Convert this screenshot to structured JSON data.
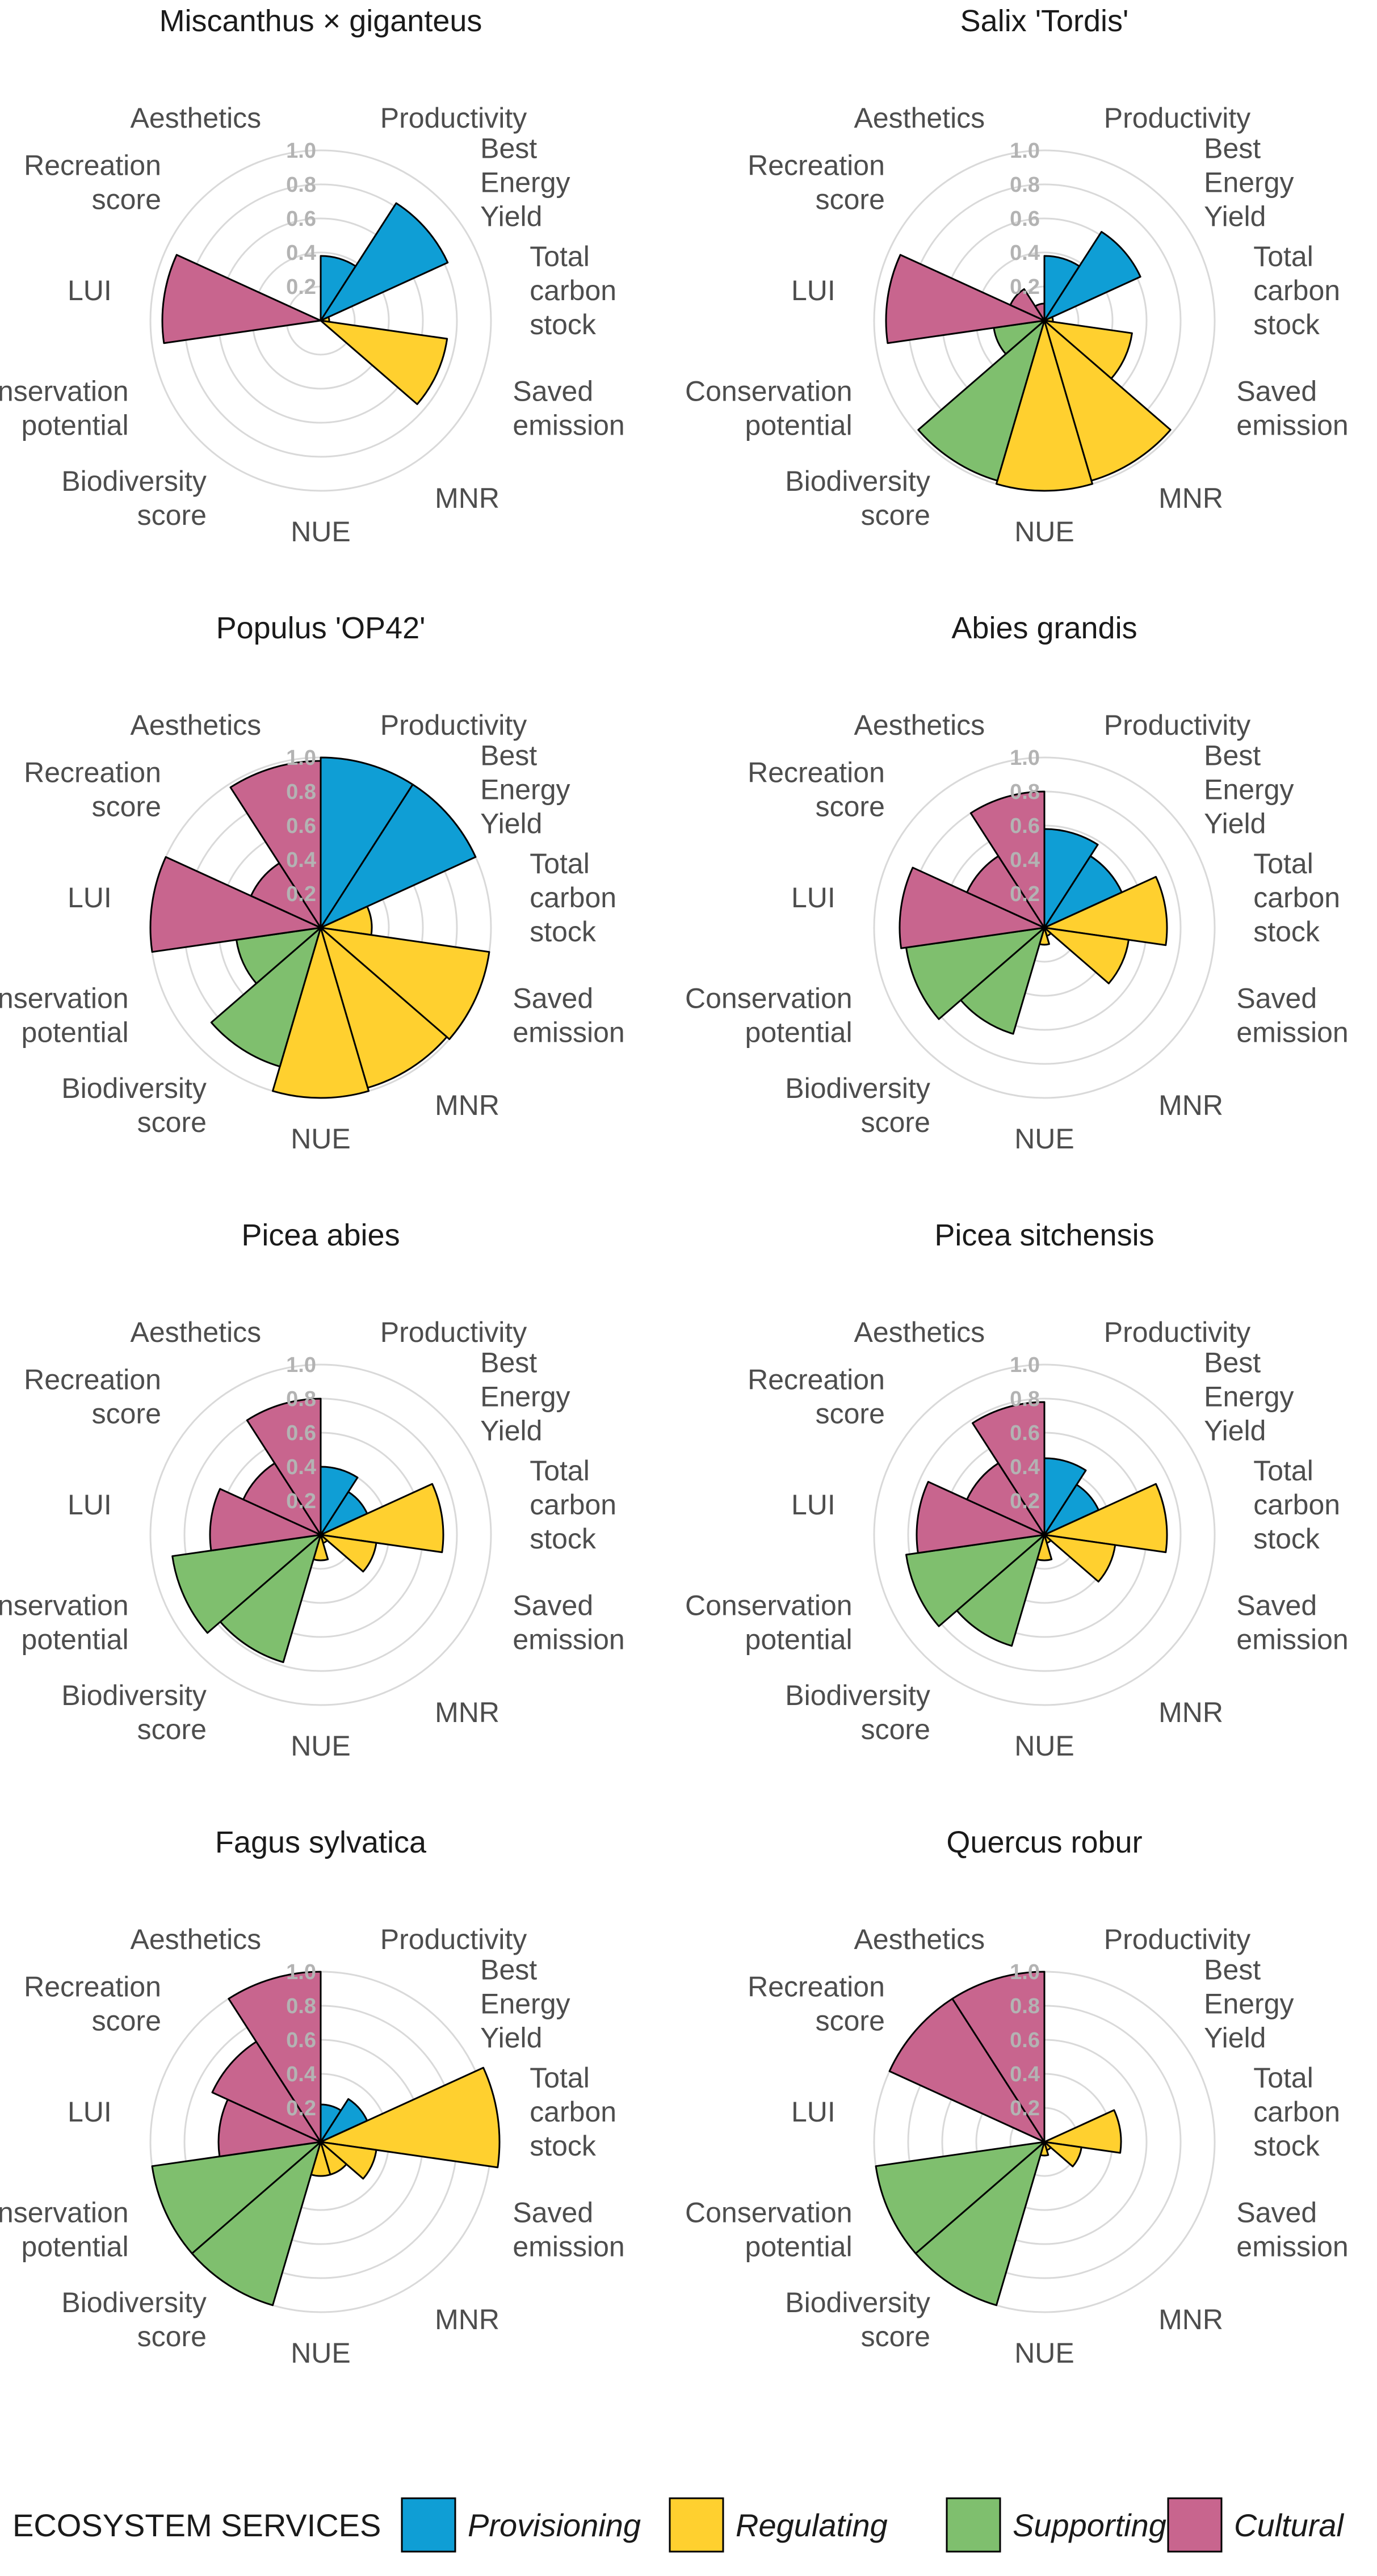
{
  "chart_data": {
    "type": "polar-bar",
    "radial_axis": {
      "range": [
        0,
        1.0
      ],
      "ticks": [
        "0.2",
        "0.4",
        "0.6",
        "0.8",
        "1.0"
      ]
    },
    "categories": [
      {
        "key": "productivity",
        "label": "Productivity",
        "group": "provisioning"
      },
      {
        "key": "best_energy_yield",
        "label": "Best\nEnergy\nYield",
        "group": "provisioning"
      },
      {
        "key": "total_carbon_stock",
        "label": "Total\ncarbon\nstock",
        "group": "regulating"
      },
      {
        "key": "saved_emission",
        "label": "Saved\nemission",
        "group": "regulating"
      },
      {
        "key": "mnr",
        "label": "MNR",
        "group": "regulating"
      },
      {
        "key": "nue",
        "label": "NUE",
        "group": "regulating"
      },
      {
        "key": "biodiversity_score",
        "label": "Biodiversity\nscore",
        "group": "supporting"
      },
      {
        "key": "conservation_potential",
        "label": "Conservation\npotential",
        "group": "supporting"
      },
      {
        "key": "lui",
        "label": "LUI",
        "group": "cultural"
      },
      {
        "key": "recreation_score",
        "label": "Recreation\nscore",
        "group": "cultural"
      },
      {
        "key": "aesthetics",
        "label": "Aesthetics",
        "group": "cultural"
      }
    ],
    "series": [
      {
        "name": "Miscanthus × giganteus",
        "values": [
          0.38,
          0.82,
          0.05,
          0.75,
          0.0,
          0.0,
          0.0,
          0.0,
          0.93,
          0.0,
          0.0
        ]
      },
      {
        "name": "Salix 'Tordis'",
        "values": [
          0.38,
          0.62,
          0.05,
          0.52,
          0.98,
          1.0,
          0.98,
          0.3,
          0.93,
          0.22,
          0.1
        ]
      },
      {
        "name": "Populus 'OP42'",
        "values": [
          1.0,
          1.0,
          0.3,
          1.0,
          0.98,
          1.0,
          0.85,
          0.5,
          1.0,
          0.45,
          0.98
        ]
      },
      {
        "name": "Abies grandis",
        "values": [
          0.58,
          0.5,
          0.72,
          0.5,
          0.05,
          0.1,
          0.65,
          0.82,
          0.85,
          0.5,
          0.8
        ]
      },
      {
        "name": "Picea abies",
        "values": [
          0.4,
          0.3,
          0.72,
          0.33,
          0.05,
          0.15,
          0.78,
          0.88,
          0.65,
          0.5,
          0.8
        ]
      },
      {
        "name": "Picea sitchensis",
        "values": [
          0.45,
          0.35,
          0.72,
          0.42,
          0.05,
          0.15,
          0.68,
          0.82,
          0.75,
          0.5,
          0.78
        ]
      },
      {
        "name": "Fagus sylvatica",
        "values": [
          0.22,
          0.3,
          1.05,
          0.33,
          0.2,
          0.2,
          1.0,
          1.0,
          0.6,
          0.7,
          1.0
        ]
      },
      {
        "name": "Quercus robur",
        "values": [
          0.0,
          0.0,
          0.45,
          0.22,
          0.05,
          0.08,
          1.0,
          1.0,
          0.0,
          1.0,
          1.0
        ]
      }
    ],
    "legend": {
      "title": "ECOSYSTEM SERVICES",
      "position": "bottom",
      "items": [
        {
          "group": "provisioning",
          "label": "Provisioning",
          "color": "#0f9ed5"
        },
        {
          "group": "regulating",
          "label": "Regulating",
          "color": "#ffd02f"
        },
        {
          "group": "supporting",
          "label": "Supporting",
          "color": "#7fbf6e"
        },
        {
          "group": "cultural",
          "label": "Cultural",
          "color": "#c8658e"
        }
      ]
    },
    "gridline_color": "#d9d9d9",
    "bar_outline_color": "#000000"
  }
}
